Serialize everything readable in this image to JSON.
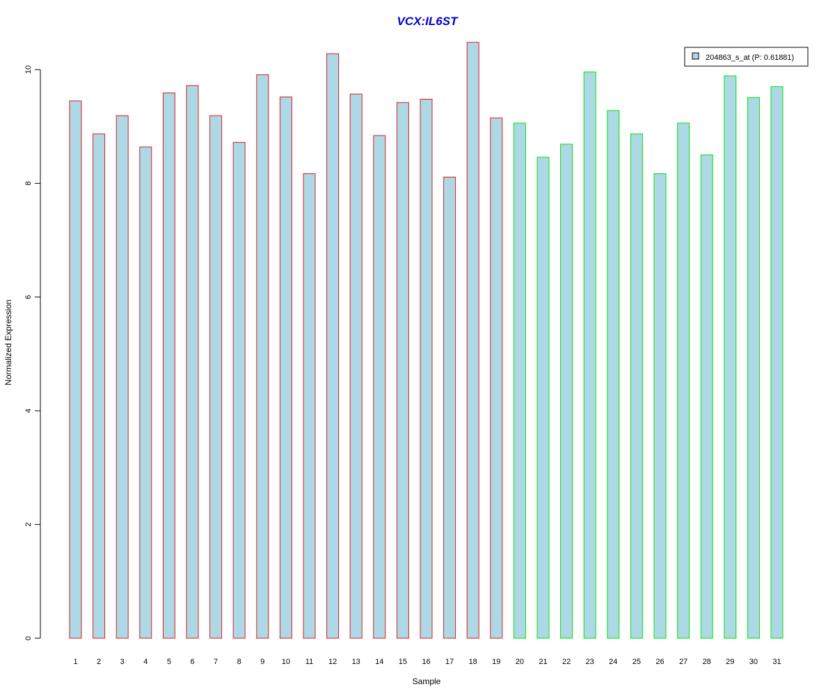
{
  "chart_data": {
    "type": "bar",
    "title": "VCX:IL6ST",
    "xlabel": "Sample",
    "ylabel": "Normalized Expression",
    "ylim": [
      0,
      10.5
    ],
    "yticks": [
      0,
      2,
      4,
      6,
      8,
      10
    ],
    "categories": [
      "1",
      "2",
      "3",
      "4",
      "5",
      "6",
      "7",
      "8",
      "9",
      "10",
      "11",
      "12",
      "13",
      "14",
      "15",
      "16",
      "17",
      "18",
      "19",
      "20",
      "21",
      "22",
      "23",
      "24",
      "25",
      "26",
      "27",
      "28",
      "29",
      "30",
      "31"
    ],
    "series": [
      {
        "name": "204863_s_at (P: 0.61881)",
        "values": [
          9.45,
          8.87,
          9.19,
          8.64,
          9.59,
          9.72,
          9.19,
          8.72,
          9.91,
          9.52,
          8.17,
          10.28,
          9.57,
          8.84,
          9.42,
          9.48,
          8.11,
          10.48,
          9.15,
          9.06,
          8.46,
          8.69,
          9.96,
          9.28,
          8.87,
          8.17,
          9.06,
          8.5,
          9.89,
          9.51,
          9.7
        ]
      }
    ],
    "groups": [
      {
        "range": [
          1,
          19
        ],
        "border_color": "#e41a1c"
      },
      {
        "range": [
          20,
          31
        ],
        "border_color": "#00e600"
      }
    ],
    "colors": {
      "title": "#0000cc",
      "bar_fill": "#add8e6",
      "group1_border": "#e41a1c",
      "group2_border": "#00e600"
    },
    "grid": false,
    "legend_position": "top-right"
  }
}
